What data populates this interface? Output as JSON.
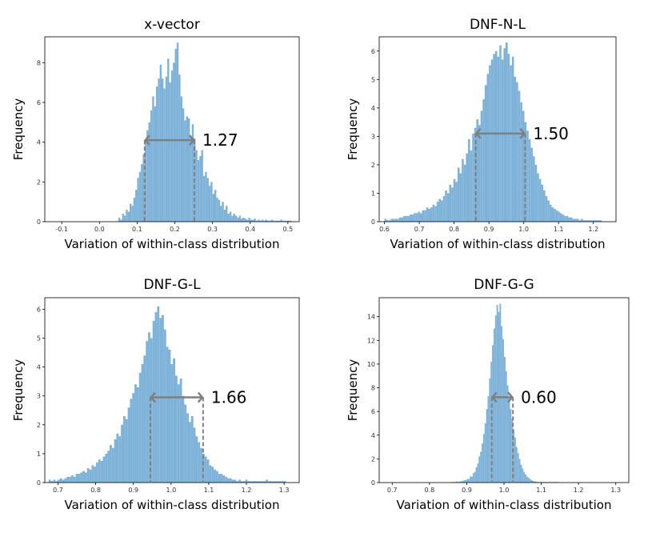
{
  "chart_data": [
    {
      "type": "histogram",
      "title": "x-vector",
      "xlabel": "Variation of within-class distribution",
      "ylabel": "Frequency",
      "xlim": [
        -0.145,
        0.53
      ],
      "ylim": [
        0,
        9.3
      ],
      "xticks": [
        -0.1,
        0.0,
        0.1,
        0.2,
        0.3,
        0.4,
        0.5
      ],
      "xtick_labels": [
        "-0.1",
        "0.0",
        "0.1",
        "0.2",
        "0.3",
        "0.4",
        "0.5"
      ],
      "yticks": [
        0,
        2,
        4,
        6,
        8
      ],
      "ytick_labels": [
        "0",
        "2",
        "4",
        "6",
        "8"
      ],
      "bins": {
        "start": 0.05,
        "width": 0.005,
        "counts": [
          0.2,
          0.1,
          0.4,
          0.3,
          0.6,
          0.5,
          0.9,
          0.8,
          1.2,
          1.6,
          2.2,
          2.5,
          2.9,
          3.4,
          4.0,
          4.6,
          5.0,
          5.6,
          6.3,
          5.8,
          6.8,
          7.2,
          7.9,
          7.2,
          6.7,
          7.3,
          8.2,
          7.0,
          7.6,
          8.0,
          8.7,
          9.0,
          7.4,
          6.3,
          5.7,
          5.1,
          5.3,
          5.2,
          4.3,
          4.9,
          4.2,
          3.6,
          3.1,
          3.3,
          3.6,
          2.3,
          2.5,
          2.2,
          1.8,
          2.0,
          1.4,
          1.6,
          1.2,
          1.1,
          0.8,
          1.0,
          0.6,
          0.8,
          0.4,
          0.5,
          0.3,
          0.4,
          0.3,
          0.2,
          0.3,
          0.15,
          0.2,
          0.15,
          0.1,
          0.2,
          0.1,
          0.1,
          0.15,
          0.05,
          0.1,
          0.05,
          0.1,
          0.05,
          0.1,
          0.05,
          0.05,
          0.1,
          0.05,
          0.05,
          0.05,
          0.05,
          0.1,
          0.05,
          0.05,
          0.05,
          0.05,
          0.05
        ]
      },
      "annotation": {
        "label": "1.27",
        "x1": 0.12,
        "x2": 0.252,
        "y": 4.1
      }
    },
    {
      "type": "histogram",
      "title": "DNF-N-L",
      "xlabel": "Variation of within-class distribution",
      "ylabel": "Frequency",
      "xlim": [
        0.585,
        1.265
      ],
      "ylim": [
        0,
        6.5
      ],
      "xticks": [
        0.6,
        0.7,
        0.8,
        0.9,
        1.0,
        1.1,
        1.2
      ],
      "xtick_labels": [
        "0.6",
        "0.7",
        "0.8",
        "0.9",
        "1.0",
        "1.1",
        "1.2"
      ],
      "yticks": [
        0,
        1,
        2,
        3,
        4,
        5,
        6
      ],
      "ytick_labels": [
        "0",
        "1",
        "2",
        "3",
        "4",
        "5",
        "6"
      ],
      "bins": {
        "start": 0.6,
        "width": 0.006,
        "counts": [
          0.1,
          0.05,
          0.05,
          0.1,
          0.1,
          0.1,
          0.1,
          0.15,
          0.15,
          0.2,
          0.2,
          0.2,
          0.25,
          0.25,
          0.3,
          0.3,
          0.35,
          0.3,
          0.4,
          0.4,
          0.5,
          0.45,
          0.5,
          0.6,
          0.55,
          0.7,
          0.8,
          0.75,
          0.9,
          1.1,
          1.0,
          1.3,
          1.2,
          1.5,
          1.4,
          1.9,
          1.7,
          2.2,
          2.0,
          2.4,
          2.9,
          2.5,
          3.1,
          3.3,
          3.6,
          3.4,
          3.9,
          4.3,
          4.8,
          5.2,
          5.5,
          5.7,
          5.9,
          6.0,
          5.8,
          6.2,
          5.7,
          6.1,
          6.3,
          5.9,
          5.5,
          5.8,
          5.1,
          4.9,
          4.6,
          4.2,
          3.9,
          3.5,
          3.2,
          2.9,
          2.6,
          2.3,
          2.0,
          1.7,
          1.5,
          1.3,
          1.1,
          0.9,
          0.75,
          0.6,
          0.5,
          0.45,
          0.4,
          0.35,
          0.3,
          0.25,
          0.2,
          0.2,
          0.15,
          0.15,
          0.1,
          0.1,
          0.1,
          0.05,
          0.1,
          0.05,
          0.05,
          0.05,
          0.05,
          0.05,
          0.05,
          0.05,
          0.05,
          0.05
        ]
      },
      "annotation": {
        "label": "1.50",
        "x1": 0.862,
        "x2": 1.004,
        "y": 3.1
      }
    },
    {
      "type": "histogram",
      "title": "DNF-G-L",
      "xlabel": "Variation of within-class distribution",
      "ylabel": "Frequency",
      "xlim": [
        0.665,
        1.34
      ],
      "ylim": [
        0,
        6.4
      ],
      "xticks": [
        0.7,
        0.8,
        0.9,
        1.0,
        1.1,
        1.2,
        1.3
      ],
      "xtick_labels": [
        "0.7",
        "0.8",
        "0.9",
        "1.0",
        "1.1",
        "1.2",
        "1.3"
      ],
      "yticks": [
        0,
        1,
        2,
        3,
        4,
        5,
        6
      ],
      "ytick_labels": [
        "0",
        "1",
        "2",
        "3",
        "4",
        "5",
        "6"
      ],
      "bins": {
        "start": 0.675,
        "width": 0.006,
        "counts": [
          0.1,
          0.05,
          0.1,
          0.05,
          0.1,
          0.15,
          0.1,
          0.15,
          0.2,
          0.2,
          0.25,
          0.2,
          0.3,
          0.3,
          0.35,
          0.4,
          0.35,
          0.5,
          0.45,
          0.6,
          0.55,
          0.7,
          0.8,
          0.75,
          0.9,
          1.0,
          1.1,
          1.3,
          1.2,
          1.5,
          1.7,
          1.6,
          2.0,
          2.3,
          2.2,
          2.6,
          2.9,
          3.1,
          3.4,
          3.3,
          3.8,
          4.1,
          4.4,
          4.9,
          5.2,
          5.0,
          5.6,
          5.9,
          6.1,
          5.7,
          5.8,
          5.3,
          4.7,
          4.6,
          4.1,
          4.3,
          3.7,
          3.4,
          3.6,
          3.0,
          2.7,
          2.4,
          2.1,
          2.3,
          1.9,
          1.6,
          1.4,
          1.2,
          1.0,
          0.9,
          0.8,
          0.6,
          0.55,
          0.45,
          0.4,
          0.3,
          0.3,
          0.25,
          0.2,
          0.15,
          0.15,
          0.1,
          0.1,
          0.05,
          0.1,
          0.05,
          0.05,
          0.1,
          0.05,
          0.05,
          0.05,
          0.05,
          0.05,
          0.05,
          0.05,
          0.05,
          0.1,
          0.05,
          0.05,
          0.05,
          0.05,
          0.05,
          0.05,
          0.05,
          0.05
        ]
      },
      "annotation": {
        "label": "1.66",
        "x1": 0.945,
        "x2": 1.085,
        "y": 2.95
      }
    },
    {
      "type": "histogram",
      "title": "DNF-G-G",
      "xlabel": "Variation of within-class distribution",
      "ylabel": "Frequency",
      "xlim": [
        0.665,
        1.335
      ],
      "ylim": [
        0,
        15.6
      ],
      "xticks": [
        0.7,
        0.8,
        0.9,
        1.0,
        1.1,
        1.2,
        1.3
      ],
      "xtick_labels": [
        "0.7",
        "0.8",
        "0.9",
        "1.0",
        "1.1",
        "1.2",
        "1.3"
      ],
      "yticks": [
        0,
        2,
        4,
        6,
        8,
        10,
        12,
        14
      ],
      "ytick_labels": [
        "0",
        "2",
        "4",
        "6",
        "8",
        "10",
        "12",
        "14"
      ],
      "bins": {
        "start": 0.86,
        "width": 0.004,
        "counts": [
          0.05,
          0.05,
          0.05,
          0.1,
          0.05,
          0.1,
          0.1,
          0.15,
          0.2,
          0.2,
          0.3,
          0.3,
          0.5,
          0.5,
          0.8,
          0.9,
          1.3,
          1.6,
          2.2,
          2.6,
          3.3,
          4.1,
          5.0,
          6.2,
          7.3,
          8.8,
          10.2,
          11.6,
          13.0,
          14.1,
          15.0,
          14.4,
          15.1,
          13.2,
          12.1,
          10.6,
          9.4,
          8.2,
          7.1,
          6.2,
          5.4,
          4.5,
          3.8,
          3.0,
          2.5,
          2.0,
          1.5,
          1.2,
          0.9,
          0.7,
          0.5,
          0.4,
          0.3,
          0.2,
          0.15,
          0.1,
          0.1,
          0.05,
          0.05,
          0.05,
          0.05,
          0.05,
          0.05,
          0.05,
          0.05,
          0.05,
          0.05,
          0.05,
          0.05,
          0.05,
          0.05,
          0.05
        ]
      },
      "annotation": {
        "label": "0.60",
        "x1": 0.967,
        "x2": 1.024,
        "y": 7.2
      }
    }
  ]
}
